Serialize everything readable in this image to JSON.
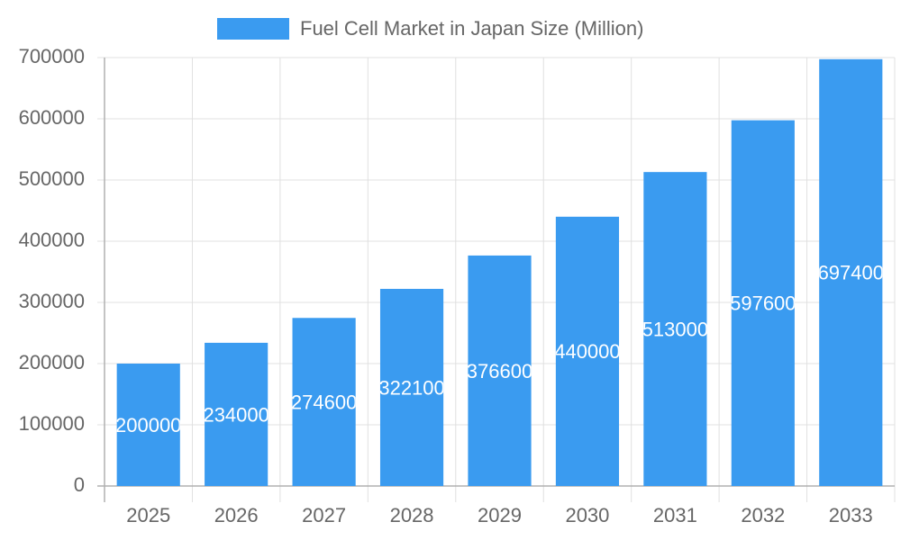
{
  "chart_data": {
    "type": "bar",
    "categories": [
      "2025",
      "2026",
      "2027",
      "2028",
      "2029",
      "2030",
      "2031",
      "2032",
      "2033"
    ],
    "series": [
      {
        "name": "Fuel Cell Market in Japan Size (Million)",
        "color": "#3a9bf0",
        "values": [
          200000,
          234000,
          274600,
          322100,
          376600,
          440000,
          513000,
          597600,
          697400
        ]
      }
    ],
    "ylim": [
      0,
      700000
    ],
    "yticks": [
      0,
      100000,
      200000,
      300000,
      400000,
      500000,
      600000,
      700000
    ],
    "grid": true,
    "legend": "top",
    "data_labels": true
  }
}
